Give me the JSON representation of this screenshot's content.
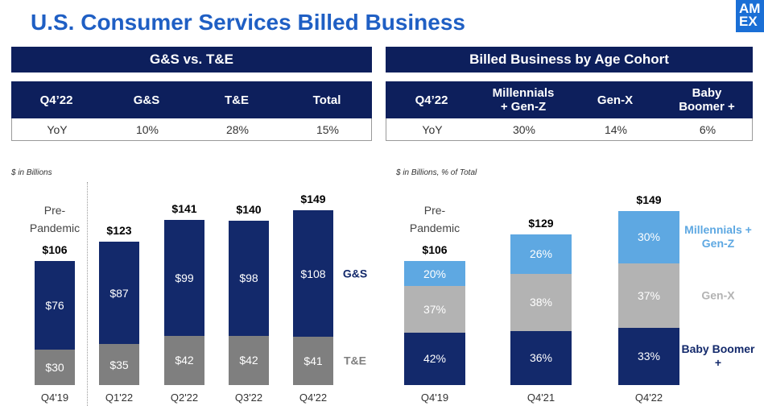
{
  "title": "U.S. Consumer Services Billed Business",
  "logo": "AMEX",
  "tables": [
    {
      "title": "G&S vs. T&E",
      "header": [
        "Q4’22",
        "G&S",
        "T&E",
        "Total"
      ],
      "rows": [
        [
          "YoY",
          "10%",
          "28%",
          "15%"
        ]
      ]
    },
    {
      "title": "Billed Business by Age Cohort",
      "header": [
        "Q4’22",
        "Millennials + Gen-Z",
        "Gen-X",
        "Baby Boomer +"
      ],
      "rows": [
        [
          "YoY",
          "30%",
          "14%",
          "6%"
        ]
      ]
    }
  ],
  "chart_data": [
    {
      "type": "stacked",
      "subtitle": "$ in Billions",
      "annotation": "Pre-Pandemic",
      "categories": [
        "Q4'19",
        "Q1'22",
        "Q2'22",
        "Q3'22",
        "Q4'22"
      ],
      "series": [
        {
          "name": "T&E",
          "color": "#7f7f7f",
          "values": [
            30,
            35,
            42,
            42,
            41
          ],
          "value_labels": [
            "$30",
            "$35",
            "$42",
            "$42",
            "$41"
          ]
        },
        {
          "name": "G&S",
          "color": "#13296b",
          "values": [
            76,
            87,
            99,
            98,
            108
          ],
          "value_labels": [
            "$76",
            "$87",
            "$99",
            "$98",
            "$108"
          ]
        }
      ],
      "totals": [
        106,
        123,
        141,
        140,
        149
      ],
      "total_labels": [
        "$106",
        "$123",
        "$141",
        "$140",
        "$149"
      ]
    },
    {
      "type": "percent",
      "subtitle": "$ in Billions, % of Total",
      "annotation": "Pre-Pandemic",
      "categories": [
        "Q4'19",
        "Q4'21",
        "Q4'22"
      ],
      "series": [
        {
          "name": "Baby Boomer +",
          "color": "#13296b",
          "values": [
            42,
            36,
            33
          ],
          "value_labels": [
            "42%",
            "36%",
            "33%"
          ]
        },
        {
          "name": "Gen-X",
          "color": "#b3b3b3",
          "values": [
            37,
            38,
            37
          ],
          "value_labels": [
            "37%",
            "38%",
            "37%"
          ]
        },
        {
          "name": "Millennials + Gen-Z",
          "color": "#5ea8e2",
          "values": [
            20,
            26,
            30
          ],
          "value_labels": [
            "20%",
            "26%",
            "30%"
          ]
        }
      ],
      "totals": [
        106,
        129,
        149
      ],
      "total_labels": [
        "$106",
        "$129",
        "$149"
      ]
    }
  ]
}
